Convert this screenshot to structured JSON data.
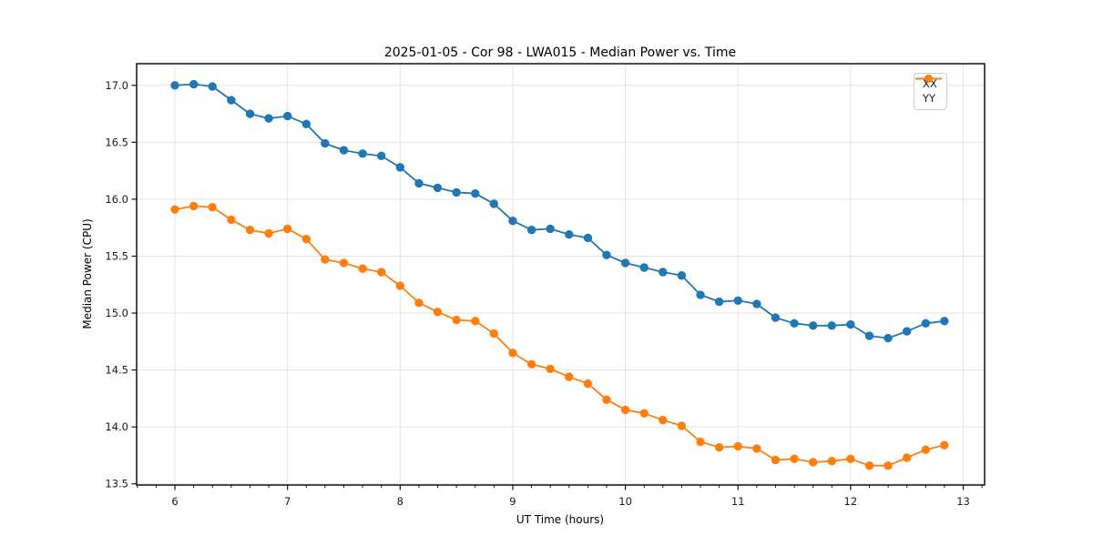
{
  "chart_data": {
    "type": "line",
    "title": "2025-01-05 - Cor 98 - LWA015 - Median Power vs. Time",
    "xlabel": "UT Time (hours)",
    "ylabel": "Median Power (CPU)",
    "xlim": [
      5.66,
      13.19
    ],
    "ylim": [
      13.49,
      17.19
    ],
    "x_ticks": [
      6,
      7,
      8,
      9,
      10,
      11,
      12,
      13
    ],
    "y_ticks": [
      13.5,
      14.0,
      14.5,
      15.0,
      15.5,
      16.0,
      16.5,
      17.0
    ],
    "x_minor_step_hours": 0.16667,
    "grid": true,
    "grid_color": "#e3e3e3",
    "spine_color": "#000000",
    "text_color": "#1a1a1a",
    "legend_position": "upper right",
    "x": [
      6.0,
      6.167,
      6.333,
      6.5,
      6.667,
      6.833,
      7.0,
      7.167,
      7.333,
      7.5,
      7.667,
      7.833,
      8.0,
      8.167,
      8.333,
      8.5,
      8.667,
      8.833,
      9.0,
      9.167,
      9.333,
      9.5,
      9.667,
      9.833,
      10.0,
      10.167,
      10.333,
      10.5,
      10.667,
      10.833,
      11.0,
      11.167,
      11.333,
      11.5,
      11.667,
      11.833,
      12.0,
      12.167,
      12.333,
      12.5,
      12.667,
      12.833
    ],
    "series": [
      {
        "name": "XX",
        "color": "#1f77b4",
        "values": [
          17.0,
          17.01,
          16.99,
          16.87,
          16.75,
          16.71,
          16.73,
          16.66,
          16.49,
          16.43,
          16.4,
          16.38,
          16.28,
          16.14,
          16.1,
          16.06,
          16.05,
          15.96,
          15.81,
          15.73,
          15.74,
          15.69,
          15.66,
          15.51,
          15.44,
          15.4,
          15.36,
          15.33,
          15.16,
          15.1,
          15.11,
          15.08,
          14.96,
          14.91,
          14.89,
          14.89,
          14.9,
          14.8,
          14.78,
          14.84,
          14.91,
          14.93
        ]
      },
      {
        "name": "YY",
        "color": "#ff7f0e",
        "values": [
          15.91,
          15.94,
          15.93,
          15.82,
          15.73,
          15.7,
          15.74,
          15.65,
          15.47,
          15.44,
          15.39,
          15.36,
          15.24,
          15.09,
          15.01,
          14.94,
          14.93,
          14.82,
          14.65,
          14.55,
          14.51,
          14.44,
          14.38,
          14.24,
          14.15,
          14.12,
          14.06,
          14.01,
          13.87,
          13.82,
          13.83,
          13.81,
          13.71,
          13.72,
          13.69,
          13.7,
          13.72,
          13.66,
          13.66,
          13.73,
          13.8,
          13.84
        ]
      }
    ]
  }
}
